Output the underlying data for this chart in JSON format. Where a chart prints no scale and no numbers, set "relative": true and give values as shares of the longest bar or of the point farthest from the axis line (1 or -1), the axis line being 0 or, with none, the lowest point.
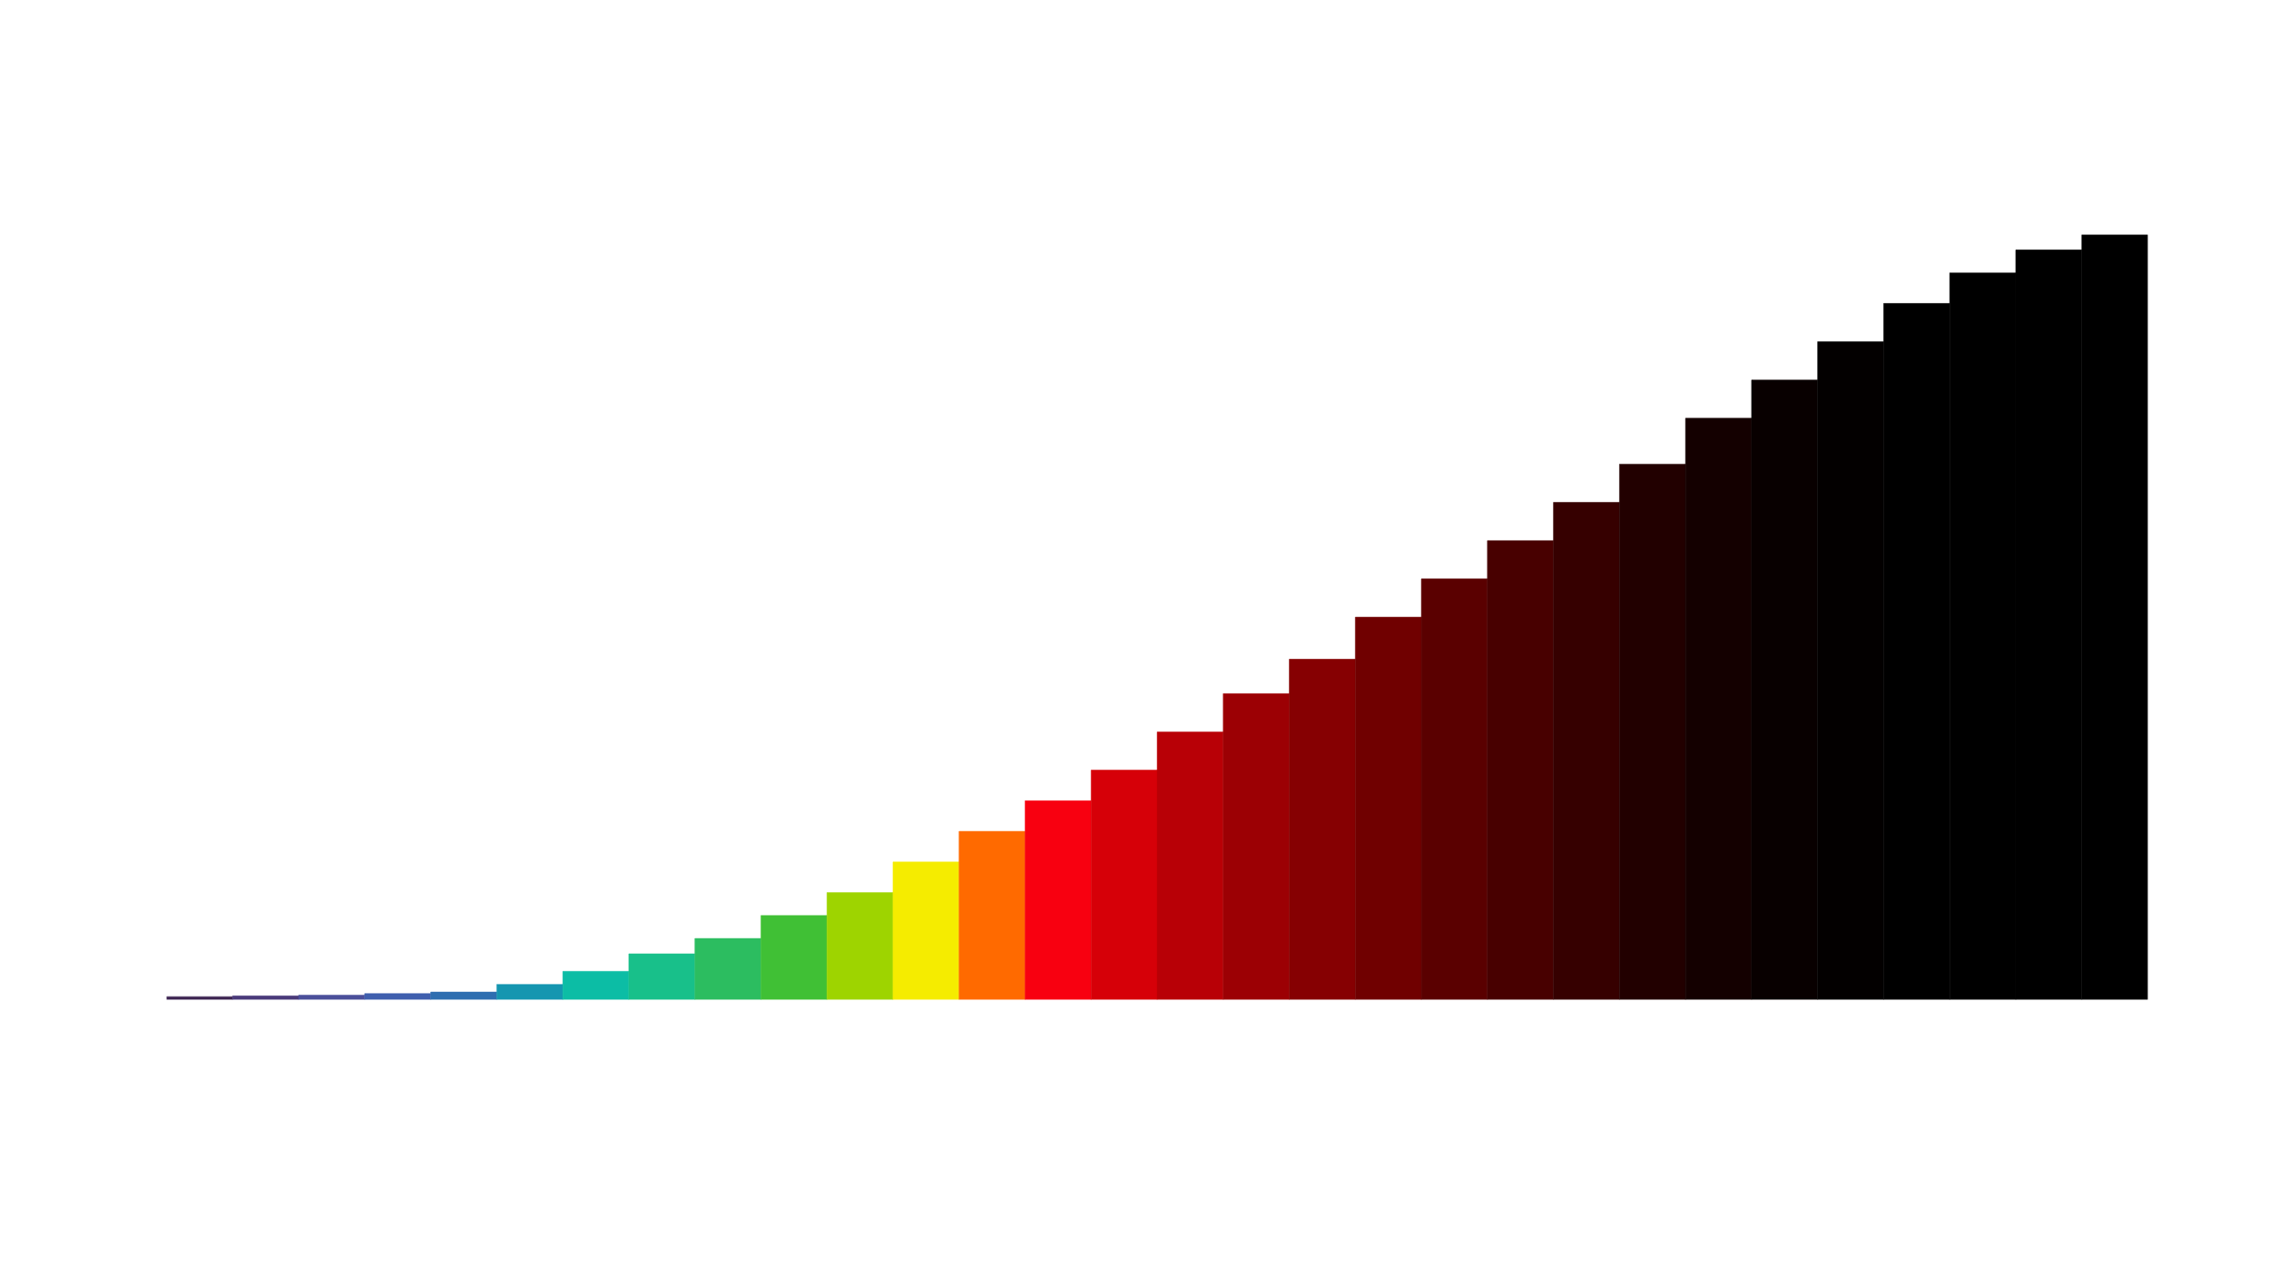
{
  "chart_data": {
    "type": "bar",
    "relative": true,
    "grid": false,
    "categories": [
      null,
      null,
      null,
      null,
      null,
      null,
      null,
      null,
      null,
      null,
      null,
      null,
      null,
      null,
      null,
      null,
      null,
      null,
      null,
      null,
      null,
      null,
      null,
      null,
      null,
      null,
      null,
      null,
      null,
      null
    ],
    "values": [
      0.004,
      0.005,
      0.006,
      0.008,
      0.01,
      0.02,
      0.037,
      0.06,
      0.08,
      0.11,
      0.14,
      0.18,
      0.22,
      0.26,
      0.3,
      0.35,
      0.4,
      0.445,
      0.5,
      0.55,
      0.6,
      0.65,
      0.7,
      0.76,
      0.81,
      0.86,
      0.91,
      0.95,
      0.98,
      1
    ],
    "colors": [
      "#3b2350",
      "#4a3a7a",
      "#4b4f9a",
      "#3f5fae",
      "#2e6eb0",
      "#1596b0",
      "#0cbda5",
      "#18c08a",
      "#2cbd60",
      "#40c035",
      "#9ed400",
      "#f5ec00",
      "#ff6a00",
      "#f80010",
      "#d60008",
      "#b80006",
      "#9c0004",
      "#860002",
      "#700000",
      "#5a0000",
      "#480000",
      "#360000",
      "#220000",
      "#140000",
      "#080000",
      "#030000",
      "#000000",
      "#000000",
      "#000000",
      "#000000"
    ]
  }
}
